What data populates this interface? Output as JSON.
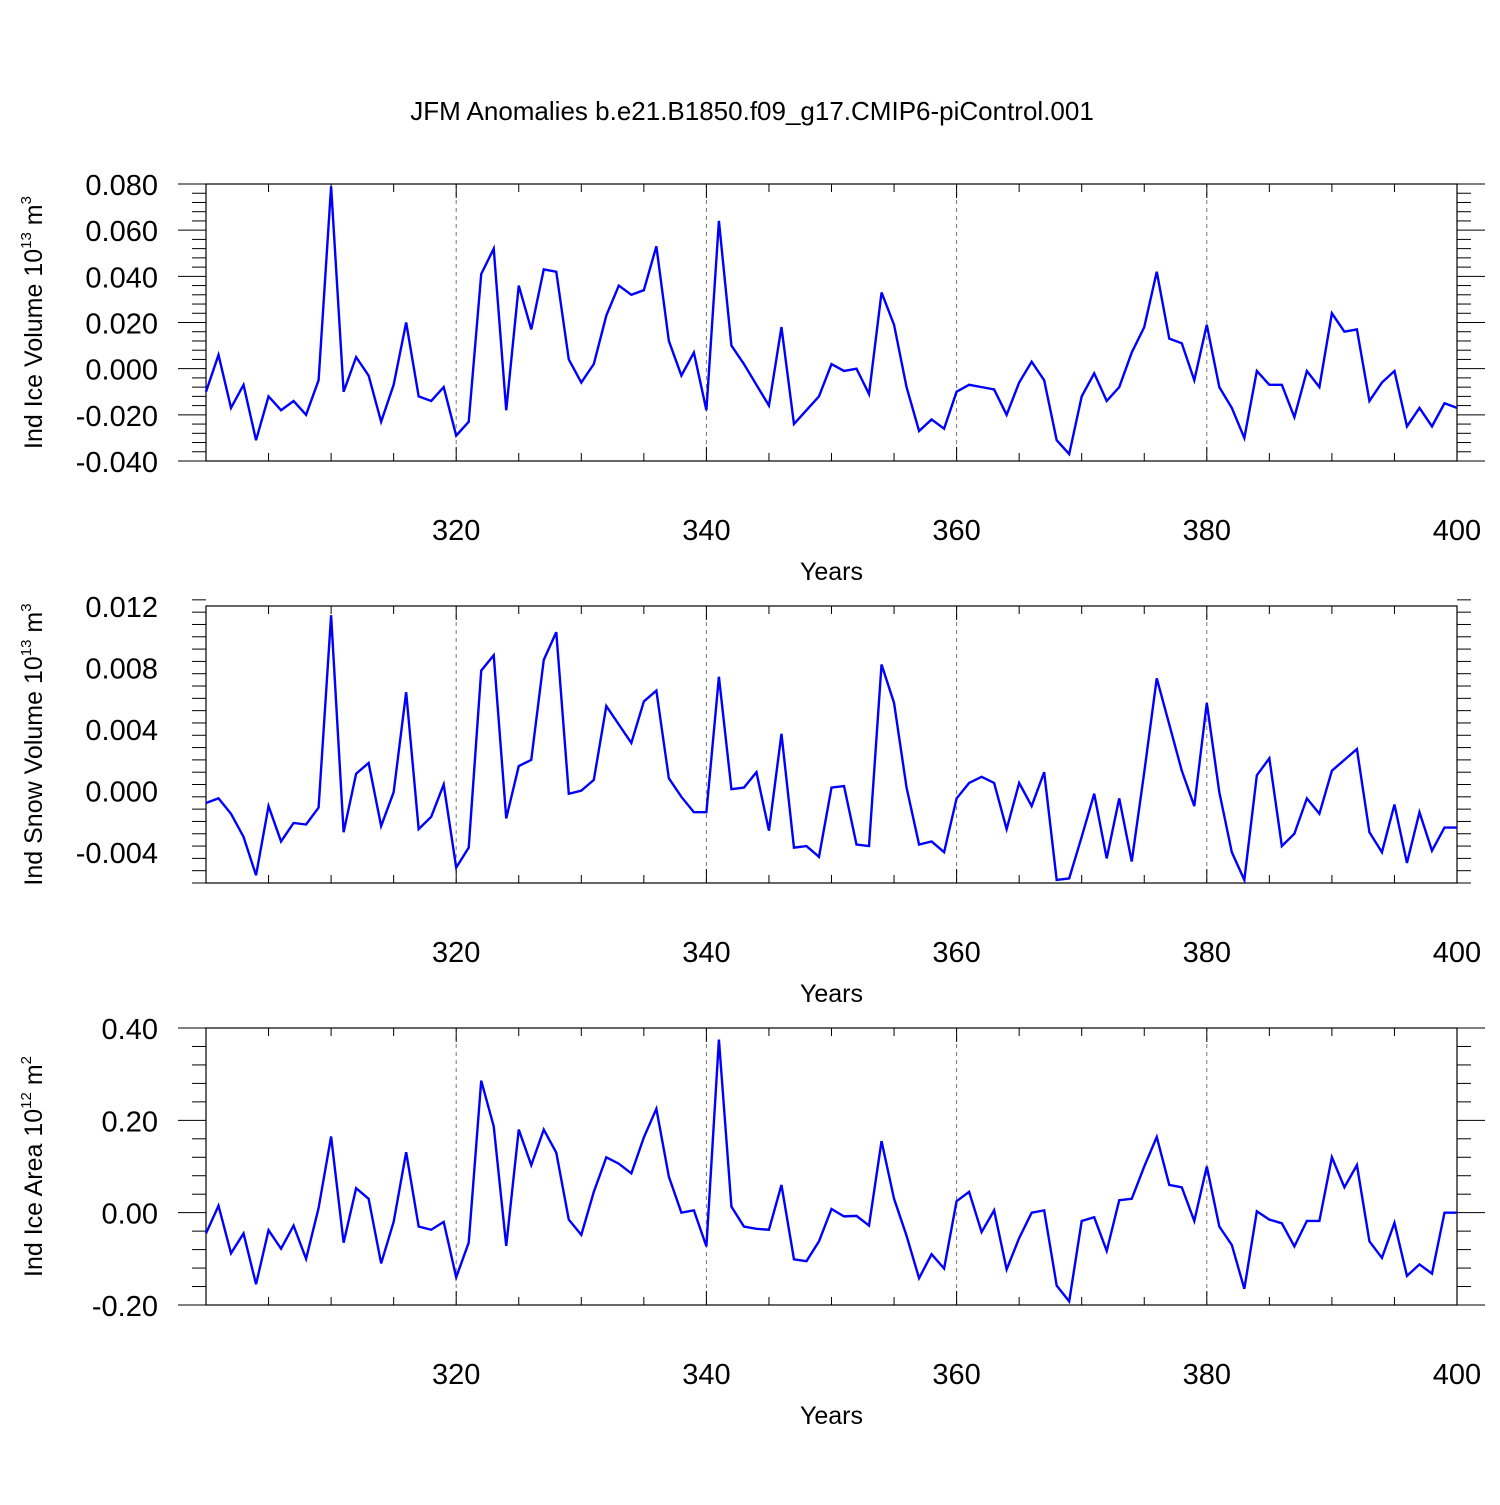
{
  "title": "JFM Anomalies b.e21.B1850.f09_g17.CMIP6-piControl.001",
  "colors": {
    "line": "#0000ff",
    "axis": "#000000",
    "gridline": "#777777",
    "background": "#ffffff"
  },
  "chart_data": [
    {
      "type": "line",
      "ylabel": {
        "main": "Ind Ice Volume 10",
        "exp": "13",
        "unit": "m",
        "unit_exp": "3"
      },
      "xlabel": "Years",
      "xlim": [
        300,
        400
      ],
      "ylim": [
        -0.04,
        0.08
      ],
      "yticks": [
        -0.04,
        -0.02,
        0.0,
        0.02,
        0.04,
        0.06,
        0.08
      ],
      "ytick_labels": [
        "-0.040",
        "-0.020",
        "0.000",
        "0.020",
        "0.040",
        "0.060",
        "0.080"
      ],
      "xticks": [
        320,
        340,
        360,
        380,
        400
      ],
      "xtick_labels": [
        "320",
        "340",
        "360",
        "380",
        "400"
      ],
      "x": [
        300,
        301,
        302,
        303,
        304,
        305,
        306,
        307,
        308,
        309,
        310,
        311,
        312,
        313,
        314,
        315,
        316,
        317,
        318,
        319,
        320,
        321,
        322,
        323,
        324,
        325,
        326,
        327,
        328,
        329,
        330,
        331,
        332,
        333,
        334,
        335,
        336,
        337,
        338,
        339,
        340,
        341,
        342,
        343,
        344,
        345,
        346,
        347,
        348,
        349,
        350,
        351,
        352,
        353,
        354,
        355,
        356,
        357,
        358,
        359,
        360,
        361,
        362,
        363,
        364,
        365,
        366,
        367,
        368,
        369,
        370,
        371,
        372,
        373,
        374,
        375,
        376,
        377,
        378,
        379,
        380,
        381,
        382,
        383,
        384,
        385,
        386,
        387,
        388,
        389,
        390,
        391,
        392,
        393,
        394,
        395,
        396,
        397,
        398,
        399,
        400
      ],
      "series": [
        {
          "name": "Ind Ice Volume",
          "values": [
            -0.01,
            0.006,
            -0.017,
            -0.007,
            -0.031,
            -0.012,
            -0.018,
            -0.014,
            -0.02,
            -0.005,
            0.079,
            -0.01,
            0.005,
            -0.003,
            -0.023,
            -0.007,
            0.02,
            -0.012,
            -0.014,
            -0.008,
            -0.029,
            -0.023,
            0.041,
            0.052,
            -0.018,
            0.036,
            0.017,
            0.043,
            0.042,
            0.004,
            -0.006,
            0.002,
            0.023,
            0.036,
            0.032,
            0.034,
            0.053,
            0.012,
            -0.003,
            0.007,
            -0.018,
            0.064,
            0.01,
            0.002,
            -0.007,
            -0.016,
            0.018,
            -0.024,
            -0.018,
            -0.012,
            0.002,
            -0.001,
            0.0,
            -0.011,
            0.033,
            0.019,
            -0.008,
            -0.027,
            -0.022,
            -0.026,
            -0.01,
            -0.007,
            -0.008,
            -0.009,
            -0.02,
            -0.006,
            0.003,
            -0.005,
            -0.031,
            -0.037,
            -0.012,
            -0.002,
            -0.014,
            -0.008,
            0.007,
            0.018,
            0.042,
            0.013,
            0.011,
            -0.005,
            0.019,
            -0.008,
            -0.017,
            -0.03,
            -0.001,
            -0.007,
            -0.007,
            -0.021,
            -0.001,
            -0.008,
            0.024,
            0.016,
            0.017,
            -0.014,
            -0.006,
            -0.001,
            -0.025,
            -0.017,
            -0.025,
            -0.015,
            -0.017
          ]
        }
      ]
    },
    {
      "type": "line",
      "ylabel": {
        "main": "Ind Snow Volume 10",
        "exp": "13",
        "unit": "m",
        "unit_exp": "3"
      },
      "xlabel": "Years",
      "xlim": [
        300,
        400
      ],
      "ylim": [
        -0.006,
        0.012
      ],
      "yticks": [
        -0.004,
        0.0,
        0.004,
        0.008,
        0.012
      ],
      "ytick_labels": [
        "-0.004",
        "0.000",
        "0.004",
        "0.008",
        "0.012"
      ],
      "xticks": [
        320,
        340,
        360,
        380,
        400
      ],
      "xtick_labels": [
        "320",
        "340",
        "360",
        "380",
        "400"
      ],
      "x": [
        300,
        301,
        302,
        303,
        304,
        305,
        306,
        307,
        308,
        309,
        310,
        311,
        312,
        313,
        314,
        315,
        316,
        317,
        318,
        319,
        320,
        321,
        322,
        323,
        324,
        325,
        326,
        327,
        328,
        329,
        330,
        331,
        332,
        333,
        334,
        335,
        336,
        337,
        338,
        339,
        340,
        341,
        342,
        343,
        344,
        345,
        346,
        347,
        348,
        349,
        350,
        351,
        352,
        353,
        354,
        355,
        356,
        357,
        358,
        359,
        360,
        361,
        362,
        363,
        364,
        365,
        366,
        367,
        368,
        369,
        370,
        371,
        372,
        373,
        374,
        375,
        376,
        377,
        378,
        379,
        380,
        381,
        382,
        383,
        384,
        385,
        386,
        387,
        388,
        389,
        390,
        391,
        392,
        393,
        394,
        395,
        396,
        397,
        398,
        399,
        400
      ],
      "series": [
        {
          "name": "Ind Snow Volume",
          "values": [
            -0.0008,
            -0.0005,
            -0.0015,
            -0.003,
            -0.0055,
            -0.001,
            -0.0033,
            -0.0021,
            -0.0022,
            -0.0011,
            0.0114,
            -0.0027,
            0.0011,
            0.0018,
            -0.0023,
            -0.0001,
            0.0064,
            -0.0025,
            -0.0017,
            0.0004,
            -0.005,
            -0.0037,
            0.0078,
            0.0088,
            -0.0018,
            0.0016,
            0.002,
            0.0085,
            0.0103,
            -0.0002,
            0.0,
            0.0007,
            0.0055,
            0.0043,
            0.0031,
            0.0058,
            0.0065,
            0.0008,
            -0.0004,
            -0.0014,
            -0.0014,
            0.0074,
            0.0001,
            0.0002,
            0.0012,
            -0.0026,
            0.0037,
            -0.0037,
            -0.0036,
            -0.0043,
            0.0002,
            0.0003,
            -0.0035,
            -0.0036,
            0.0082,
            0.0057,
            0.0002,
            -0.0035,
            -0.0033,
            -0.004,
            -0.0005,
            0.0005,
            0.0009,
            0.0005,
            -0.0025,
            0.0005,
            -0.001,
            0.0012,
            -0.0058,
            -0.0057,
            -0.003,
            -0.0002,
            -0.0044,
            -0.0005,
            -0.0046,
            0.0012,
            0.0073,
            0.0043,
            0.0013,
            -0.001,
            0.0057,
            -0.0001,
            -0.004,
            -0.0058,
            0.001,
            0.0021,
            -0.0036,
            -0.0028,
            -0.0005,
            -0.0015,
            0.0013,
            0.002,
            0.0027,
            -0.0027,
            -0.004,
            -0.0009,
            -0.0047,
            -0.0014,
            -0.0039,
            -0.0024,
            -0.0024
          ]
        }
      ]
    },
    {
      "type": "line",
      "ylabel": {
        "main": "Ind Ice Area 10",
        "exp": "12",
        "unit": "m",
        "unit_exp": "2"
      },
      "xlabel": "Years",
      "xlim": [
        300,
        400
      ],
      "ylim": [
        -0.2,
        0.4
      ],
      "yticks": [
        -0.2,
        0.0,
        0.2,
        0.4
      ],
      "ytick_labels": [
        "-0.20",
        "0.00",
        "0.20",
        "0.40"
      ],
      "xticks": [
        320,
        340,
        360,
        380,
        400
      ],
      "xtick_labels": [
        "320",
        "340",
        "360",
        "380",
        "400"
      ],
      "x": [
        300,
        301,
        302,
        303,
        304,
        305,
        306,
        307,
        308,
        309,
        310,
        311,
        312,
        313,
        314,
        315,
        316,
        317,
        318,
        319,
        320,
        321,
        322,
        323,
        324,
        325,
        326,
        327,
        328,
        329,
        330,
        331,
        332,
        333,
        334,
        335,
        336,
        337,
        338,
        339,
        340,
        341,
        342,
        343,
        344,
        345,
        346,
        347,
        348,
        349,
        350,
        351,
        352,
        353,
        354,
        355,
        356,
        357,
        358,
        359,
        360,
        361,
        362,
        363,
        364,
        365,
        366,
        367,
        368,
        369,
        370,
        371,
        372,
        373,
        374,
        375,
        376,
        377,
        378,
        379,
        380,
        381,
        382,
        383,
        384,
        385,
        386,
        387,
        388,
        389,
        390,
        391,
        392,
        393,
        394,
        395,
        396,
        397,
        398,
        399,
        400
      ],
      "series": [
        {
          "name": "Ind Ice Area",
          "values": [
            -0.045,
            0.015,
            -0.088,
            -0.045,
            -0.155,
            -0.038,
            -0.078,
            -0.028,
            -0.1,
            0.01,
            0.165,
            -0.065,
            0.053,
            0.03,
            -0.11,
            -0.02,
            0.131,
            -0.03,
            -0.037,
            -0.02,
            -0.14,
            -0.065,
            0.286,
            0.187,
            -0.072,
            0.18,
            0.103,
            0.18,
            0.13,
            -0.015,
            -0.048,
            0.045,
            0.12,
            0.106,
            0.085,
            0.163,
            0.225,
            0.078,
            0.0,
            0.005,
            -0.073,
            0.375,
            0.013,
            -0.03,
            -0.035,
            -0.037,
            0.06,
            -0.101,
            -0.105,
            -0.062,
            0.008,
            -0.008,
            -0.007,
            -0.028,
            0.155,
            0.03,
            -0.05,
            -0.142,
            -0.09,
            -0.121,
            0.025,
            0.045,
            -0.042,
            0.005,
            -0.123,
            -0.055,
            0.0,
            0.005,
            -0.158,
            -0.192,
            -0.018,
            -0.01,
            -0.083,
            0.027,
            0.03,
            0.1,
            0.164,
            0.06,
            0.055,
            -0.018,
            0.1,
            -0.03,
            -0.07,
            -0.165,
            0.003,
            -0.015,
            -0.023,
            -0.073,
            -0.018,
            -0.018,
            0.12,
            0.055,
            0.103,
            -0.062,
            -0.098,
            -0.022,
            -0.137,
            -0.112,
            -0.132,
            0.0,
            0.0
          ]
        }
      ]
    }
  ]
}
